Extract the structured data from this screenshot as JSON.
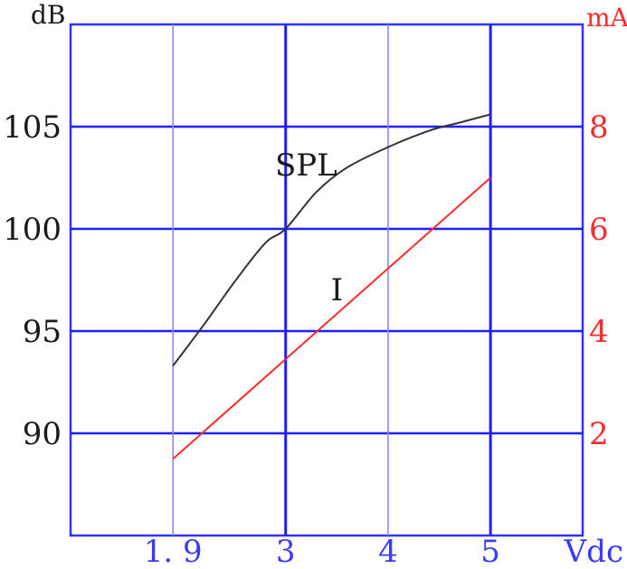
{
  "chart_data": {
    "type": "line",
    "left_axis": {
      "label": "dB",
      "range": [
        85,
        110
      ],
      "ticks": [
        {
          "value": 90,
          "label": "90"
        },
        {
          "value": 95,
          "label": "95"
        },
        {
          "value": 100,
          "label": "100"
        },
        {
          "value": 105,
          "label": "105"
        }
      ]
    },
    "right_axis": {
      "label": "mA",
      "range": [
        0,
        10
      ],
      "ticks": [
        {
          "value": 2,
          "label": "2"
        },
        {
          "value": 4,
          "label": "4"
        },
        {
          "value": 6,
          "label": "6"
        },
        {
          "value": 8,
          "label": "8"
        }
      ]
    },
    "x_axis": {
      "label": "Vdc",
      "range": [
        0.9,
        5.9
      ],
      "ticks": [
        {
          "value": 1.9,
          "label": "1.9"
        },
        {
          "value": 3,
          "label": "3"
        },
        {
          "value": 4,
          "label": "4"
        },
        {
          "value": 5,
          "label": "5"
        }
      ],
      "bold_gridlines": [
        3,
        5
      ]
    },
    "grid": true,
    "series": [
      {
        "name": "SPL",
        "axis": "left",
        "color": "#333333",
        "x": [
          1.9,
          2.2,
          2.5,
          2.8,
          3.0,
          3.3,
          3.6,
          4.0,
          4.4,
          4.7,
          5.0
        ],
        "y": [
          93.3,
          95.3,
          97.4,
          99.3,
          100.0,
          101.8,
          103.0,
          104.0,
          104.8,
          105.2,
          105.6
        ]
      },
      {
        "name": "I",
        "axis": "right",
        "color": "#ff2a2a",
        "x": [
          1.9,
          5.0
        ],
        "y": [
          1.5,
          7.0
        ]
      }
    ],
    "annotations": [
      {
        "text": "SPL",
        "x": 3.2,
        "y": 102.6,
        "axis": "left"
      },
      {
        "text": "I",
        "x": 3.5,
        "y": 4.6,
        "axis": "right"
      }
    ]
  }
}
